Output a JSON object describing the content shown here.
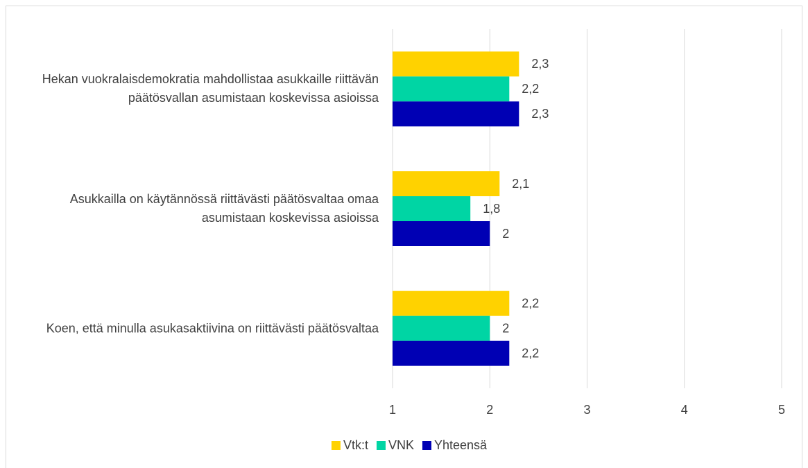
{
  "chart_data": {
    "type": "bar",
    "orientation": "horizontal",
    "categories": [
      "Hekan vuokralaisdemokratia mahdollistaa asukkaille riittävän päätösvallan asumistaan koskevissa asioissa",
      "Asukkailla on käytännössä riittävästi päätösvaltaa omaa asumistaan koskevissa asioissa",
      "Koen, että minulla asukasaktiivina on riittävästi päätösvaltaa"
    ],
    "series": [
      {
        "name": "Vtk:t",
        "color": "#ffd200",
        "values": [
          2.3,
          2.1,
          2.2
        ],
        "value_labels": [
          "2,3",
          "2,1",
          "2,2"
        ]
      },
      {
        "name": "VNK",
        "color": "#00d5a4",
        "values": [
          2.2,
          1.8,
          2
        ],
        "value_labels": [
          "2,2",
          "1,8",
          "2"
        ]
      },
      {
        "name": "Yhteensä",
        "color": "#0000b4",
        "values": [
          2.3,
          2,
          2.2
        ],
        "value_labels": [
          "2,3",
          "2",
          "2,2"
        ]
      }
    ],
    "xlim": [
      1,
      5
    ],
    "xticks": [
      1,
      2,
      3,
      4,
      5
    ],
    "grid": true,
    "legend": "bottom"
  }
}
